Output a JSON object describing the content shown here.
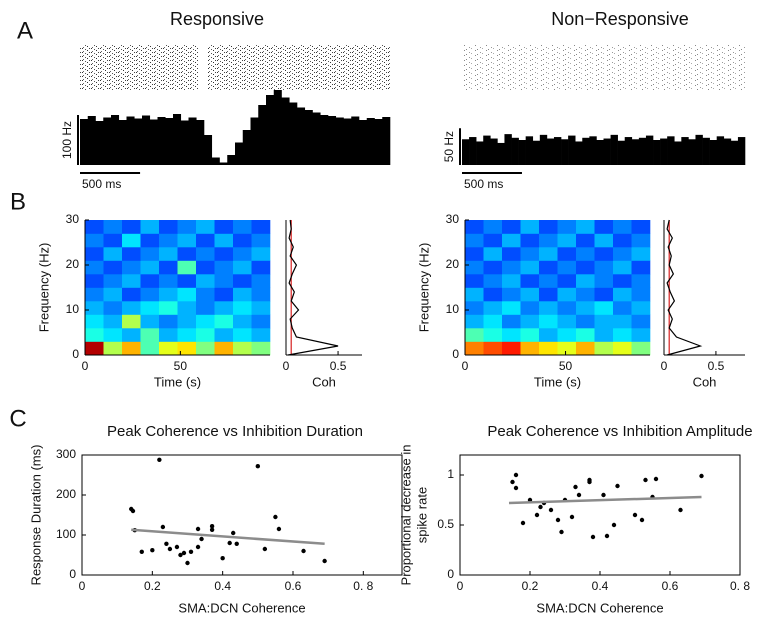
{
  "chart_data": [
    {
      "type": "bar",
      "panel_label": "A",
      "title": "Responsive",
      "color": "#000000",
      "values": [
        92,
        98,
        88,
        95,
        100,
        90,
        97,
        93,
        99,
        91,
        96,
        94,
        102,
        89,
        95,
        90,
        60,
        15,
        5,
        20,
        45,
        70,
        95,
        120,
        140,
        150,
        135,
        125,
        115,
        110,
        105,
        100,
        98,
        95,
        93,
        97,
        90,
        94,
        92,
        96
      ],
      "xlim": [
        0,
        2580
      ],
      "ylim": [
        0,
        150
      ],
      "scale_bar_y": {
        "value": 100,
        "label": "100 Hz"
      },
      "scale_bar_x": {
        "value": 500,
        "label": "500 ms"
      }
    },
    {
      "type": "bar",
      "title": "Non−Responsive",
      "color": "#000000",
      "values": [
        35,
        38,
        32,
        40,
        36,
        30,
        42,
        37,
        34,
        39,
        33,
        41,
        36,
        38,
        35,
        40,
        32,
        37,
        39,
        34,
        36,
        41,
        33,
        38,
        35,
        37,
        40,
        34,
        36,
        39,
        32,
        38,
        35,
        41,
        37,
        34,
        39,
        36,
        33,
        38
      ],
      "xlim": [
        0,
        2360
      ],
      "ylim": [
        0,
        68
      ],
      "scale_bar_y": {
        "value": 50,
        "label": "50 Hz"
      },
      "scale_bar_x": {
        "value": 500,
        "label": "500 ms"
      }
    },
    {
      "type": "heatmap",
      "panel_label": "B",
      "xlabel": "Time (s)",
      "ylabel": "Frequency (Hz)",
      "xlim": [
        0,
        97
      ],
      "ylim": [
        0,
        30
      ],
      "xticks": [
        0,
        50
      ],
      "yticks": [
        0,
        10,
        20,
        30
      ],
      "z": [
        [
          0.95,
          0.55,
          0.7,
          0.45,
          0.6,
          0.65,
          0.5,
          0.7,
          0.55,
          0.5
        ],
        [
          0.4,
          0.35,
          0.3,
          0.45,
          0.3,
          0.35,
          0.4,
          0.3,
          0.35,
          0.3
        ],
        [
          0.35,
          0.3,
          0.55,
          0.3,
          0.25,
          0.3,
          0.35,
          0.4,
          0.3,
          0.25
        ],
        [
          0.3,
          0.25,
          0.3,
          0.35,
          0.4,
          0.3,
          0.25,
          0.3,
          0.35,
          0.3
        ],
        [
          0.25,
          0.3,
          0.2,
          0.25,
          0.3,
          0.35,
          0.25,
          0.2,
          0.3,
          0.25
        ],
        [
          0.2,
          0.25,
          0.3,
          0.2,
          0.25,
          0.2,
          0.3,
          0.25,
          0.2,
          0.25
        ],
        [
          0.25,
          0.2,
          0.25,
          0.3,
          0.2,
          0.45,
          0.2,
          0.25,
          0.3,
          0.2
        ],
        [
          0.2,
          0.3,
          0.2,
          0.25,
          0.3,
          0.2,
          0.25,
          0.2,
          0.25,
          0.3
        ],
        [
          0.25,
          0.2,
          0.35,
          0.2,
          0.25,
          0.3,
          0.2,
          0.3,
          0.2,
          0.25
        ],
        [
          0.2,
          0.25,
          0.2,
          0.3,
          0.2,
          0.25,
          0.3,
          0.2,
          0.25,
          0.2
        ]
      ]
    },
    {
      "type": "line",
      "xlabel": "Coh",
      "color": "#000000",
      "threshold": 0.05,
      "threshold_color": "#d62020",
      "xlim": [
        0,
        0.73
      ],
      "ylim": [
        0,
        30
      ],
      "xticks": [
        0,
        0.5
      ],
      "y": [
        0,
        2,
        4,
        6,
        8,
        10,
        12,
        14,
        16,
        18,
        20,
        22,
        24,
        26,
        28,
        30
      ],
      "values": [
        0.02,
        0.5,
        0.1,
        0.06,
        0.04,
        0.12,
        0.05,
        0.08,
        0.03,
        0.06,
        0.1,
        0.04,
        0.07,
        0.03,
        0.05,
        0.04
      ]
    },
    {
      "type": "heatmap",
      "xlabel": "Time (s)",
      "ylabel": "Frequency (Hz)",
      "xlim": [
        0,
        92
      ],
      "ylim": [
        0,
        30
      ],
      "xticks": [
        0,
        50
      ],
      "yticks": [
        0,
        10,
        20,
        30
      ],
      "z": [
        [
          0.75,
          0.8,
          0.85,
          0.7,
          0.65,
          0.6,
          0.7,
          0.55,
          0.6,
          0.5
        ],
        [
          0.45,
          0.4,
          0.35,
          0.4,
          0.3,
          0.35,
          0.4,
          0.3,
          0.35,
          0.3
        ],
        [
          0.3,
          0.35,
          0.25,
          0.3,
          0.35,
          0.3,
          0.25,
          0.3,
          0.3,
          0.25
        ],
        [
          0.25,
          0.3,
          0.35,
          0.25,
          0.3,
          0.25,
          0.3,
          0.35,
          0.25,
          0.3
        ],
        [
          0.3,
          0.2,
          0.25,
          0.3,
          0.2,
          0.3,
          0.25,
          0.2,
          0.3,
          0.25
        ],
        [
          0.2,
          0.25,
          0.3,
          0.2,
          0.25,
          0.2,
          0.3,
          0.25,
          0.2,
          0.25
        ],
        [
          0.25,
          0.2,
          0.25,
          0.3,
          0.2,
          0.25,
          0.2,
          0.25,
          0.3,
          0.2
        ],
        [
          0.2,
          0.3,
          0.2,
          0.25,
          0.3,
          0.2,
          0.25,
          0.2,
          0.25,
          0.3
        ],
        [
          0.25,
          0.2,
          0.3,
          0.2,
          0.25,
          0.3,
          0.2,
          0.3,
          0.2,
          0.25
        ],
        [
          0.2,
          0.25,
          0.2,
          0.3,
          0.2,
          0.25,
          0.3,
          0.2,
          0.25,
          0.2
        ]
      ]
    },
    {
      "type": "line",
      "xlabel": "Coh",
      "color": "#000000",
      "threshold": 0.05,
      "threshold_color": "#d62020",
      "xlim": [
        0,
        0.78
      ],
      "ylim": [
        0,
        30
      ],
      "xticks": [
        0,
        0.5
      ],
      "y": [
        0,
        2,
        4,
        6,
        8,
        10,
        12,
        14,
        16,
        18,
        20,
        22,
        24,
        26,
        28,
        30
      ],
      "values": [
        0.03,
        0.35,
        0.12,
        0.05,
        0.08,
        0.04,
        0.1,
        0.06,
        0.03,
        0.09,
        0.05,
        0.07,
        0.04,
        0.08,
        0.03,
        0.05
      ]
    },
    {
      "type": "scatter",
      "panel_label": "C",
      "title": "Peak Coherence vs Inhibition Duration",
      "xlabel": "SMA:DCN Coherence",
      "ylabel": [
        "Response Duration (ms)"
      ],
      "color": "#000000",
      "fit_color": "#8c8c8c",
      "xlim": [
        0,
        0.91
      ],
      "ylim": [
        0,
        300
      ],
      "xticks": [
        0,
        0.2,
        0.4,
        0.6,
        {
          "value": 0.8,
          "label": "0. 8"
        }
      ],
      "yticks": [
        0,
        100,
        200,
        300
      ],
      "x": [
        0.14,
        0.145,
        0.15,
        0.17,
        0.2,
        0.22,
        0.23,
        0.24,
        0.25,
        0.27,
        0.28,
        0.29,
        0.3,
        0.31,
        0.33,
        0.33,
        0.34,
        0.37,
        0.37,
        0.4,
        0.42,
        0.43,
        0.44,
        0.5,
        0.52,
        0.55,
        0.56,
        0.63,
        0.69
      ],
      "values": [
        165,
        160,
        112,
        58,
        62,
        288,
        120,
        78,
        65,
        70,
        50,
        55,
        30,
        58,
        70,
        115,
        90,
        122,
        113,
        42,
        80,
        105,
        78,
        272,
        65,
        145,
        115,
        60,
        35
      ],
      "fit": {
        "x": [
          0.14,
          0.69
        ],
        "values": [
          113,
          78
        ]
      }
    },
    {
      "type": "scatter",
      "title": "Peak Coherence vs Inhibition Amplitude",
      "xlabel": "SMA:DCN Coherence",
      "ylabel": [
        "Proportional decrease in",
        "spike rate"
      ],
      "color": "#000000",
      "fit_color": "#8c8c8c",
      "xlim": [
        0,
        0.8
      ],
      "ylim": [
        0,
        1.2
      ],
      "xticks": [
        0,
        0.2,
        0.4,
        0.6,
        {
          "value": 0.8,
          "label": "0. 8"
        }
      ],
      "yticks": [
        0,
        0.5,
        1
      ],
      "x": [
        0.15,
        0.16,
        0.16,
        0.18,
        0.2,
        0.22,
        0.23,
        0.24,
        0.26,
        0.28,
        0.29,
        0.3,
        0.32,
        0.33,
        0.34,
        0.37,
        0.37,
        0.38,
        0.41,
        0.42,
        0.44,
        0.45,
        0.5,
        0.52,
        0.53,
        0.55,
        0.56,
        0.63,
        0.69
      ],
      "values": [
        0.93,
        0.87,
        1.0,
        0.52,
        0.75,
        0.6,
        0.68,
        0.72,
        0.65,
        0.55,
        0.43,
        0.75,
        0.58,
        0.88,
        0.8,
        0.95,
        0.93,
        0.38,
        0.8,
        0.39,
        0.5,
        0.89,
        0.6,
        0.55,
        0.95,
        0.78,
        0.96,
        0.65,
        0.99
      ],
      "fit": {
        "x": [
          0.14,
          0.69
        ],
        "values": [
          0.72,
          0.78
        ]
      }
    }
  ]
}
